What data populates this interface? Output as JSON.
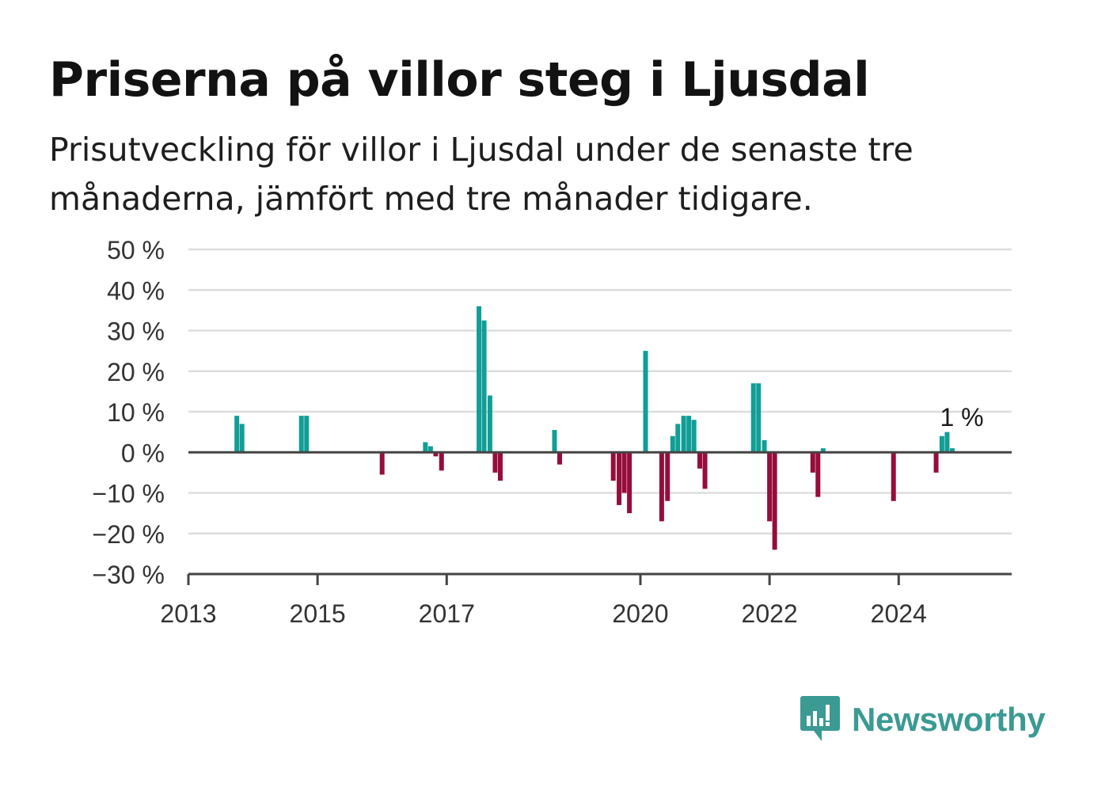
{
  "title": "Priserna på villor steg i Ljusdal",
  "subtitle": "Prisutveckling för villor i Ljusdal under de senaste tre månaderna, jämfört med tre månader tidigare.",
  "brand": {
    "name": "Newsworthy",
    "color": "#3b9a93",
    "icon": "newsworthy-logo-icon"
  },
  "colors": {
    "positive": "#119e96",
    "negative": "#960d3c",
    "grid": "#dddddd",
    "axis": "#444444"
  },
  "chart_data": {
    "type": "bar",
    "title": "Priserna på villor steg i Ljusdal",
    "xlabel": "",
    "ylabel": "",
    "ylim": [
      -30,
      50
    ],
    "y_ticks": [
      -30,
      -20,
      -10,
      0,
      10,
      20,
      30,
      40,
      50
    ],
    "y_tick_labels": [
      "−30 %",
      "−20 %",
      "−10 %",
      "0 %",
      "10 %",
      "20 %",
      "30 %",
      "40 %",
      "50 %"
    ],
    "xlim": [
      2013.0,
      2025.75
    ],
    "x_ticks": [
      2013,
      2015,
      2017,
      2020,
      2022,
      2024
    ],
    "x_tick_labels": [
      "2013",
      "2015",
      "2017",
      "2020",
      "2022",
      "2024"
    ],
    "grid": true,
    "annotation": {
      "text": "1 %",
      "x": 2024.88,
      "y": 1
    },
    "x": [
      2013.75,
      2013.83,
      2014.75,
      2014.83,
      2016.0,
      2016.67,
      2016.75,
      2016.83,
      2016.92,
      2017.5,
      2017.58,
      2017.67,
      2017.75,
      2017.83,
      2018.67,
      2018.75,
      2019.58,
      2019.67,
      2019.75,
      2019.83,
      2020.08,
      2020.33,
      2020.42,
      2020.5,
      2020.58,
      2020.67,
      2020.75,
      2020.83,
      2020.92,
      2021.0,
      2021.75,
      2021.83,
      2021.92,
      2022.0,
      2022.08,
      2022.67,
      2022.75,
      2022.83,
      2023.92,
      2024.58,
      2024.67,
      2024.75,
      2024.83
    ],
    "values": [
      9,
      7,
      9,
      9,
      -5.5,
      2.5,
      1.5,
      -1,
      -4.5,
      36,
      32.5,
      14,
      -5,
      -7,
      5.5,
      -3,
      -7,
      -13,
      -10,
      -15,
      25,
      -17,
      -12,
      4,
      7,
      9,
      9,
      8,
      -4,
      -9,
      17,
      17,
      3,
      -17,
      -24,
      -5,
      -11,
      1,
      -12,
      -5,
      4,
      5,
      1
    ]
  }
}
